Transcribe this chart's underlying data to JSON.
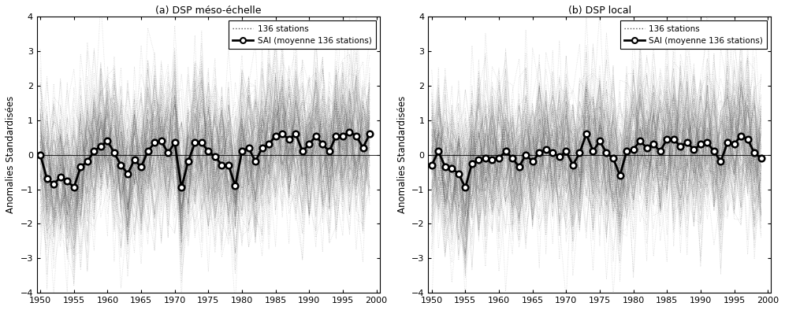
{
  "years": [
    1950,
    1951,
    1952,
    1953,
    1954,
    1955,
    1956,
    1957,
    1958,
    1959,
    1960,
    1961,
    1962,
    1963,
    1964,
    1965,
    1966,
    1967,
    1968,
    1969,
    1970,
    1971,
    1972,
    1973,
    1974,
    1975,
    1976,
    1977,
    1978,
    1979,
    1980,
    1981,
    1982,
    1983,
    1984,
    1985,
    1986,
    1987,
    1988,
    1989,
    1990,
    1991,
    1992,
    1993,
    1994,
    1995,
    1996,
    1997,
    1998,
    1999
  ],
  "sai_a": [
    0.0,
    -0.7,
    -0.85,
    -0.65,
    -0.75,
    -0.95,
    -0.35,
    -0.2,
    0.1,
    0.25,
    0.4,
    0.05,
    -0.3,
    -0.55,
    -0.15,
    -0.35,
    0.1,
    0.35,
    0.4,
    0.05,
    0.35,
    -0.95,
    -0.2,
    0.35,
    0.35,
    0.1,
    -0.05,
    -0.3,
    -0.3,
    -0.9,
    0.1,
    0.2,
    -0.2,
    0.2,
    0.3,
    0.55,
    0.6,
    0.45,
    0.6,
    0.1,
    0.3,
    0.55,
    0.3,
    0.1,
    0.55,
    0.55,
    0.65,
    0.55,
    0.2,
    0.6
  ],
  "sai_b": [
    -0.3,
    0.1,
    -0.35,
    -0.4,
    -0.55,
    -0.95,
    -0.25,
    -0.15,
    -0.1,
    -0.15,
    -0.1,
    0.1,
    -0.1,
    -0.35,
    0.0,
    -0.2,
    0.05,
    0.15,
    0.05,
    -0.05,
    0.1,
    -0.3,
    0.05,
    0.6,
    0.1,
    0.4,
    0.05,
    -0.1,
    -0.6,
    0.1,
    0.15,
    0.4,
    0.2,
    0.3,
    0.1,
    0.45,
    0.45,
    0.25,
    0.35,
    0.15,
    0.3,
    0.35,
    0.1,
    -0.2,
    0.35,
    0.3,
    0.55,
    0.45,
    0.05,
    -0.1
  ],
  "title_a": "(a) DSP méso-échelle",
  "title_b": "(b) DSP local",
  "ylabel_a": "Anomalies Standardisées",
  "ylabel_b": "Anomalies Standardisées",
  "legend_label1": "136 stations",
  "legend_label2": "SAI (moyenne 136 stations)",
  "ylim": [
    -4,
    4
  ],
  "xlim": [
    1949.5,
    2000.5
  ],
  "yticks": [
    -4,
    -3,
    -2,
    -1,
    0,
    1,
    2,
    3,
    4
  ],
  "xticks": [
    1950,
    1955,
    1960,
    1965,
    1970,
    1975,
    1980,
    1985,
    1990,
    1995,
    2000
  ],
  "n_stations": 136,
  "bg_color": "#ffffff",
  "station_color": "#222222",
  "sai_color": "#000000",
  "sai_linewidth": 2.0,
  "station_alpha": 0.18,
  "station_linewidth": 0.6
}
